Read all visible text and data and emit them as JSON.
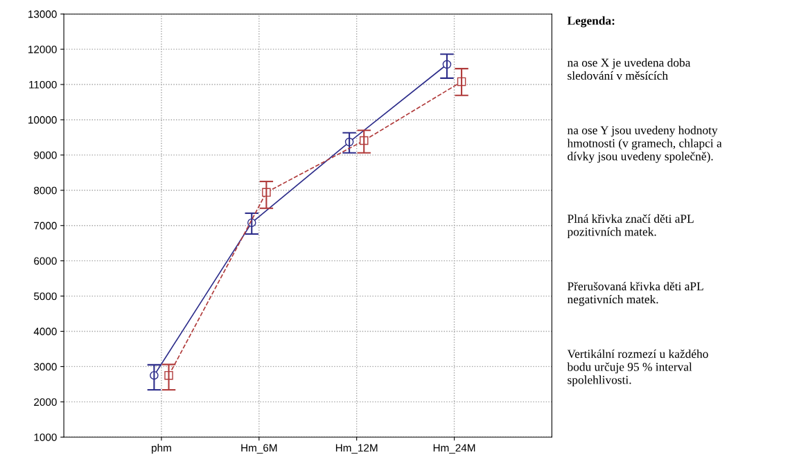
{
  "chart_data": {
    "type": "line",
    "categories": [
      "phm",
      "Hm_6M",
      "Hm_12M",
      "Hm_24M"
    ],
    "series": [
      {
        "color": "#2c2c8a",
        "marker": "circle",
        "line_style": "solid",
        "values": [
          2750,
          7080,
          9370,
          11570
        ],
        "errors": [
          [
            2340,
            3050
          ],
          [
            6760,
            7350
          ],
          [
            9060,
            9630
          ],
          [
            11180,
            11860
          ]
        ]
      },
      {
        "color": "#b03a3a",
        "marker": "square",
        "line_style": "dashed",
        "values": [
          2750,
          7940,
          9410,
          11080
        ],
        "errors": [
          [
            2340,
            3060
          ],
          [
            7490,
            8250
          ],
          [
            9060,
            9700
          ],
          [
            10690,
            11450
          ]
        ]
      }
    ],
    "ylim": [
      1000,
      13000
    ],
    "yticks": [
      1000,
      2000,
      3000,
      4000,
      5000,
      6000,
      7000,
      8000,
      9000,
      10000,
      11000,
      12000,
      13000
    ],
    "grid": true,
    "annotations": [
      "Legenda:",
      "na ose X je uvedena doba\nsledování v měsících",
      "na ose Y jsou uvedeny hodnoty\nhmotnosti (v gramech, chlapci a\ndívky jsou uvedeny společně).",
      "Plná křivka značí děti aPL\npozitivních matek.",
      "Přerušovaná křivka děti aPL\nnegativních matek.",
      "Vertikální rozmezí u každého\nbodu určuje 95 % interval\nspolehlivosti."
    ]
  }
}
